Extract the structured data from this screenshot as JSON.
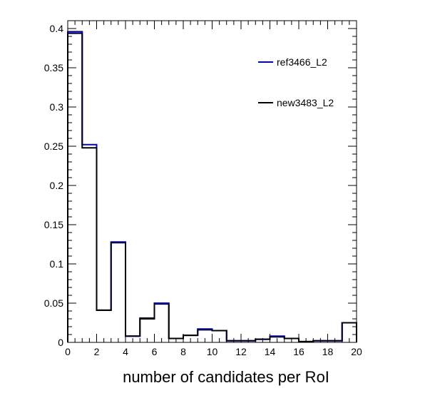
{
  "chart_data": {
    "type": "histogram",
    "xlabel": "number of candidates per RoI",
    "ylabel": "",
    "xlim": [
      0,
      20
    ],
    "ylim": [
      0,
      0.41
    ],
    "bin_edges": [
      0,
      1,
      2,
      3,
      4,
      5,
      6,
      7,
      8,
      9,
      10,
      11,
      12,
      13,
      14,
      15,
      16,
      17,
      18,
      19,
      20
    ],
    "x_ticks": [
      0,
      2,
      4,
      6,
      8,
      10,
      12,
      14,
      16,
      18,
      20
    ],
    "x_tick_labels": [
      "0",
      "2",
      "4",
      "6",
      "8",
      "10",
      "12",
      "14",
      "16",
      "18",
      "20"
    ],
    "y_ticks": [
      0,
      0.05,
      0.1,
      0.15,
      0.2,
      0.25,
      0.3,
      0.35,
      0.4
    ],
    "y_tick_labels": [
      "0",
      "0.05",
      "0.1",
      "0.15",
      "0.2",
      "0.25",
      "0.3",
      "0.35",
      "0.4"
    ],
    "legend_position": "top-right",
    "grid": false,
    "series": [
      {
        "name": "ref3466_L2",
        "color": "#0000cc",
        "values": [
          0.396,
          0.252,
          0.041,
          0.128,
          0.008,
          0.031,
          0.05,
          0.005,
          0.009,
          0.017,
          0.015,
          0.002,
          0.002,
          0.004,
          0.008,
          0.005,
          0.001,
          0.002,
          0.002,
          0.025
        ]
      },
      {
        "name": "new3483_L2",
        "color": "#000000",
        "values": [
          0.394,
          0.248,
          0.041,
          0.127,
          0.008,
          0.03,
          0.049,
          0.005,
          0.009,
          0.016,
          0.015,
          0.002,
          0.002,
          0.004,
          0.007,
          0.005,
          0.001,
          0.002,
          0.002,
          0.025
        ]
      }
    ]
  }
}
